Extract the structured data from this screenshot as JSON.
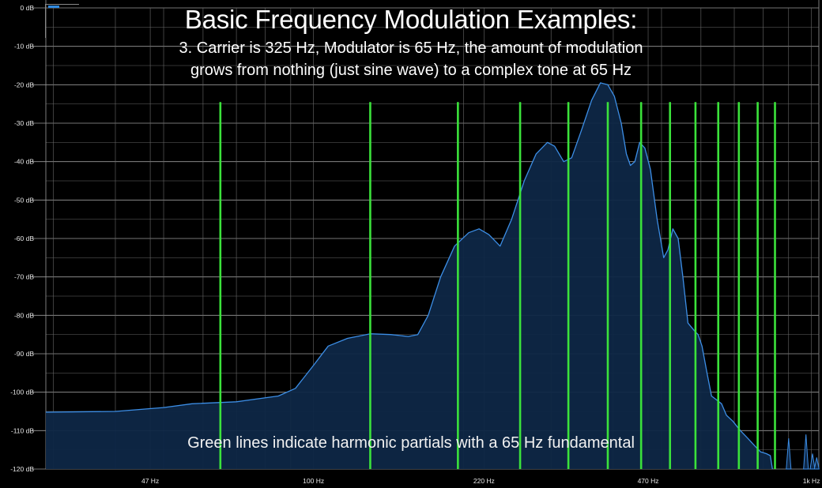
{
  "chart_data": {
    "type": "area",
    "title": "Basic Frequency Modulation Examples:",
    "subtitle_lines": [
      "3. Carrier is 325 Hz, Modulator is 65 Hz, the amount of modulation",
      "grows from nothing (just sine wave) to a complex tone at 65 Hz"
    ],
    "annotation": "Green lines indicate harmonic partials with a 65 Hz fundamental",
    "x_scale": "log",
    "xlim_hz": [
      29,
      1035
    ],
    "ylim_db": [
      -120,
      0
    ],
    "y_ticks": [
      0,
      -10,
      -20,
      -30,
      -40,
      -50,
      -60,
      -70,
      -80,
      -90,
      -100,
      -110,
      -120
    ],
    "y_tick_labels": [
      "0 dB",
      "-10 dB",
      "-20 dB",
      "-30 dB",
      "-40 dB",
      "-50 dB",
      "-60 dB",
      "-70 dB",
      "-80 dB",
      "-90 dB",
      "-100 dB",
      "-110 dB",
      "-120 dB"
    ],
    "x_ticks": [
      47,
      100,
      220,
      470,
      1000
    ],
    "x_tick_labels": [
      "47 Hz",
      "100 Hz",
      "220 Hz",
      "470 Hz",
      "1k Hz"
    ],
    "x_minor_gridlines_hz": [
      30,
      40,
      50,
      60,
      70,
      80,
      90,
      200,
      300,
      400,
      500,
      600,
      700,
      800,
      900
    ],
    "harmonic_markers_hz": [
      65,
      130,
      195,
      260,
      325,
      390,
      455,
      520,
      585,
      650,
      715,
      780,
      845
    ],
    "harmonic_marker_top_db": -24.5,
    "series": [
      {
        "points": [
          [
            29,
            -105.2
          ],
          [
            40,
            -105
          ],
          [
            50,
            -104
          ],
          [
            57,
            -103
          ],
          [
            70,
            -102.5
          ],
          [
            85,
            -101
          ],
          [
            92,
            -99
          ],
          [
            100,
            -93
          ],
          [
            107,
            -88
          ],
          [
            117,
            -86
          ],
          [
            130,
            -84.8
          ],
          [
            143,
            -85
          ],
          [
            155,
            -85.5
          ],
          [
            162,
            -85
          ],
          [
            170,
            -80
          ],
          [
            180,
            -70
          ],
          [
            192,
            -62
          ],
          [
            205,
            -58.5
          ],
          [
            215,
            -57.5
          ],
          [
            225,
            -59
          ],
          [
            237,
            -62
          ],
          [
            250,
            -55
          ],
          [
            265,
            -45
          ],
          [
            280,
            -38
          ],
          [
            295,
            -35
          ],
          [
            305,
            -36
          ],
          [
            318,
            -40
          ],
          [
            330,
            -39
          ],
          [
            345,
            -32
          ],
          [
            362,
            -24
          ],
          [
            377,
            -19.5
          ],
          [
            390,
            -20
          ],
          [
            402,
            -23
          ],
          [
            415,
            -30
          ],
          [
            425,
            -38
          ],
          [
            433,
            -41
          ],
          [
            442,
            -40
          ],
          [
            452,
            -35
          ],
          [
            463,
            -36.5
          ],
          [
            475,
            -42
          ],
          [
            490,
            -55
          ],
          [
            505,
            -65
          ],
          [
            515,
            -63
          ],
          [
            527,
            -57.5
          ],
          [
            540,
            -60
          ],
          [
            552,
            -70
          ],
          [
            565,
            -82
          ],
          [
            582,
            -84
          ],
          [
            592,
            -85
          ],
          [
            603,
            -88
          ],
          [
            617,
            -95
          ],
          [
            630,
            -101
          ],
          [
            645,
            -102
          ],
          [
            660,
            -103
          ],
          [
            675,
            -106
          ],
          [
            695,
            -107.5
          ],
          [
            720,
            -110
          ],
          [
            745,
            -112
          ],
          [
            770,
            -114
          ],
          [
            790,
            -115.5
          ],
          [
            812,
            -116
          ],
          [
            827,
            -116.5
          ],
          [
            835,
            -120
          ]
        ]
      }
    ],
    "colors": {
      "background": "#000000",
      "grid": "#9a9a9a",
      "curve": "#3c8ee6",
      "fill": "#0e2746",
      "markers": "#3be23b"
    },
    "grid": true
  }
}
